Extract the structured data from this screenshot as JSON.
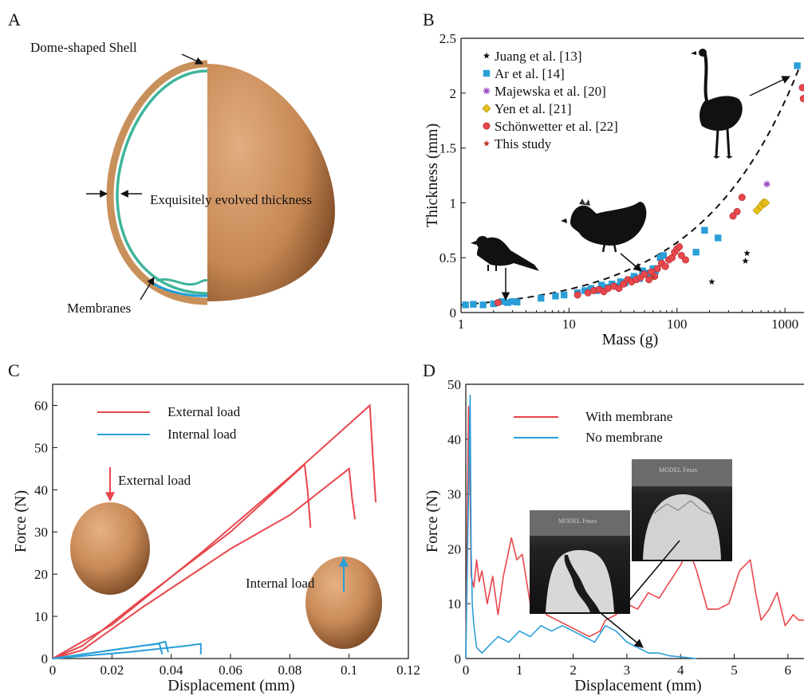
{
  "panel_letters": [
    "A",
    "B",
    "C",
    "D"
  ],
  "panel_a": {
    "labels": {
      "shell": "Dome-shaped Shell",
      "thickness": "Exquisitely evolved thickness",
      "membranes": "Membranes"
    },
    "colors": {
      "shell": "#c8905a",
      "membrane": "#3fb59a",
      "inner_membrane": "#1f9fd9",
      "egg": "#c98a58"
    }
  },
  "chart_data": [
    {
      "panel": "B",
      "type": "scatter",
      "x_scale": "log",
      "xlabel": "Mass (g)",
      "ylabel": "Thickness (mm)",
      "xlim": [
        1,
        1500
      ],
      "ylim": [
        0,
        2.5
      ],
      "xticks": [
        1,
        10,
        100,
        1000
      ],
      "yticks": [
        0,
        0.5,
        1.0,
        1.5,
        2.0,
        2.5
      ],
      "legend_position": "top-left",
      "series": [
        {
          "name": "Juang et al. [13]",
          "marker": "star",
          "color": "#111111",
          "points": [
            [
              210,
              0.28
            ],
            [
              430,
              0.47
            ],
            [
              445,
              0.54
            ]
          ]
        },
        {
          "name": "Ar et al. [14]",
          "marker": "square",
          "color": "#2a9fd8",
          "points": [
            [
              1.1,
              0.07
            ],
            [
              1.3,
              0.075
            ],
            [
              1.6,
              0.07
            ],
            [
              2.0,
              0.08
            ],
            [
              2.4,
              0.1
            ],
            [
              2.7,
              0.09
            ],
            [
              3.0,
              0.1
            ],
            [
              3.3,
              0.095
            ],
            [
              5.5,
              0.13
            ],
            [
              7.5,
              0.15
            ],
            [
              9,
              0.16
            ],
            [
              12,
              0.18
            ],
            [
              14,
              0.2
            ],
            [
              16,
              0.22
            ],
            [
              18,
              0.2
            ],
            [
              20,
              0.25
            ],
            [
              22,
              0.23
            ],
            [
              25,
              0.26
            ],
            [
              28,
              0.24
            ],
            [
              30,
              0.28
            ],
            [
              33,
              0.27
            ],
            [
              36,
              0.3
            ],
            [
              40,
              0.33
            ],
            [
              45,
              0.31
            ],
            [
              48,
              0.38
            ],
            [
              52,
              0.36
            ],
            [
              55,
              0.35
            ],
            [
              60,
              0.4
            ],
            [
              63,
              0.38
            ],
            [
              70,
              0.5
            ],
            [
              75,
              0.52
            ],
            [
              150,
              0.55
            ],
            [
              180,
              0.75
            ],
            [
              240,
              0.68
            ],
            [
              1300,
              2.25
            ]
          ]
        },
        {
          "name": "Majewska et al. [20]",
          "marker": "asterisk",
          "color": "#9b4fc4",
          "points": [
            [
              680,
              1.17
            ]
          ]
        },
        {
          "name": "Yen et al. [21]",
          "marker": "diamond",
          "color": "#e6c21a",
          "points": [
            [
              550,
              0.93
            ],
            [
              600,
              0.97
            ],
            [
              630,
              1.0
            ],
            [
              660,
              1.0
            ]
          ]
        },
        {
          "name": "Schönwetter et al. [22]",
          "marker": "circle",
          "color": "#e8474c",
          "points": [
            [
              2.2,
              0.09
            ],
            [
              12,
              0.16
            ],
            [
              15,
              0.18
            ],
            [
              17,
              0.2
            ],
            [
              19,
              0.21
            ],
            [
              21,
              0.19
            ],
            [
              23,
              0.22
            ],
            [
              26,
              0.24
            ],
            [
              29,
              0.22
            ],
            [
              32,
              0.26
            ],
            [
              35,
              0.3
            ],
            [
              38,
              0.28
            ],
            [
              42,
              0.3
            ],
            [
              46,
              0.32
            ],
            [
              50,
              0.35
            ],
            [
              55,
              0.3
            ],
            [
              58,
              0.37
            ],
            [
              62,
              0.33
            ],
            [
              66,
              0.4
            ],
            [
              72,
              0.45
            ],
            [
              78,
              0.42
            ],
            [
              84,
              0.48
            ],
            [
              90,
              0.5
            ],
            [
              95,
              0.55
            ],
            [
              100,
              0.58
            ],
            [
              105,
              0.6
            ],
            [
              110,
              0.52
            ],
            [
              120,
              0.48
            ],
            [
              330,
              0.88
            ],
            [
              360,
              0.92
            ],
            [
              400,
              1.05
            ],
            [
              1450,
              2.05
            ],
            [
              1480,
              1.95
            ]
          ]
        },
        {
          "name": "This study",
          "marker": "star",
          "color": "#c0392b",
          "points": [
            [
              60,
              0.32
            ]
          ]
        }
      ],
      "fit_curve": {
        "style": "dashed",
        "color": "#111111"
      }
    },
    {
      "panel": "C",
      "type": "line",
      "xlabel": "Displacement (mm)",
      "ylabel": "Force  (N)",
      "xlim": [
        0,
        0.12
      ],
      "ylim": [
        0,
        65
      ],
      "xticks": [
        0,
        0.02,
        0.04,
        0.06,
        0.08,
        0.1,
        0.12
      ],
      "yticks": [
        0,
        10,
        20,
        30,
        40,
        50,
        60
      ],
      "legend_position": "top-left",
      "annotations": {
        "external_arrow": "External load",
        "internal_arrow": "Internal load"
      },
      "series": [
        {
          "name": "External load",
          "color": "#e8474c",
          "curves": [
            {
              "x": [
                0,
                0.01,
                0.03,
                0.06,
                0.085,
                0.086,
                0.087
              ],
              "y": [
                0,
                3,
                14,
                30,
                46,
                40,
                31
              ]
            },
            {
              "x": [
                0,
                0.01,
                0.03,
                0.06,
                0.08,
                0.1,
                0.101,
                0.102
              ],
              "y": [
                0,
                2,
                12,
                26,
                34,
                45,
                38,
                33
              ]
            },
            {
              "x": [
                0,
                0.02,
                0.05,
                0.08,
                0.107,
                0.108,
                0.109
              ],
              "y": [
                0,
                8,
                25,
                43,
                60,
                48,
                37
              ]
            }
          ]
        },
        {
          "name": "Internal load",
          "color": "#2a9fd8",
          "curves": [
            {
              "x": [
                0,
                0.015,
                0.03,
                0.036,
                0.037
              ],
              "y": [
                0,
                1.5,
                3,
                3.5,
                1
              ]
            },
            {
              "x": [
                0,
                0.02,
                0.035,
                0.038,
                0.039
              ],
              "y": [
                0,
                2,
                3.5,
                4,
                1.5
              ]
            },
            {
              "x": [
                0,
                0.025,
                0.045,
                0.05,
                0.05
              ],
              "y": [
                0,
                1.5,
                3,
                3.5,
                1
              ]
            }
          ]
        }
      ]
    },
    {
      "panel": "D",
      "type": "line",
      "xlabel": "Displacement (mm)",
      "ylabel": "Force (N)",
      "xlim": [
        0,
        6.3
      ],
      "ylim": [
        0,
        50
      ],
      "xticks": [
        0,
        1,
        2,
        3,
        4,
        5,
        6
      ],
      "yticks": [
        0,
        10,
        20,
        30,
        40,
        50
      ],
      "legend_position": "top-left",
      "series": [
        {
          "name": "With membrane",
          "color": "#e8474c",
          "x": [
            0,
            0.05,
            0.08,
            0.1,
            0.15,
            0.2,
            0.25,
            0.3,
            0.4,
            0.5,
            0.6,
            0.7,
            0.85,
            0.95,
            1.05,
            1.2,
            1.35,
            1.5,
            1.7,
            1.9,
            2.1,
            2.3,
            2.5,
            2.6,
            2.8,
            3.0,
            3.2,
            3.4,
            3.6,
            3.8,
            4.0,
            4.15,
            4.3,
            4.5,
            4.7,
            4.9,
            5.1,
            5.3,
            5.4,
            5.5,
            5.65,
            5.8,
            5.95,
            6.1,
            6.2,
            6.3
          ],
          "y": [
            0,
            46,
            30,
            15,
            13,
            18,
            14,
            16,
            10,
            15,
            8,
            15,
            22,
            18,
            19,
            10,
            18,
            8,
            7,
            6,
            5,
            4,
            5,
            7,
            8,
            10,
            9,
            12,
            11,
            14,
            17,
            20,
            16,
            9,
            9,
            10,
            16,
            18,
            12,
            7,
            9,
            12,
            6,
            8,
            7,
            7
          ]
        },
        {
          "name": "No membrane",
          "color": "#2a9fd8",
          "x": [
            0,
            0.08,
            0.1,
            0.12,
            0.15,
            0.2,
            0.3,
            0.4,
            0.6,
            0.8,
            1.0,
            1.2,
            1.4,
            1.6,
            1.8,
            2.0,
            2.2,
            2.4,
            2.6,
            2.8,
            3.0,
            3.2,
            3.4,
            3.6,
            3.8,
            4.0,
            4.2,
            4.3
          ],
          "y": [
            0,
            48,
            20,
            10,
            6,
            2,
            1,
            2,
            4,
            3,
            5,
            4,
            6,
            5,
            6,
            5,
            4,
            3,
            6,
            5,
            3,
            2,
            1,
            1,
            0.5,
            0.3,
            0.1,
            0
          ]
        }
      ],
      "inset_text": {
        "photo1": "MODEL\nFmax",
        "photo2": "MODEL\nFmax"
      }
    }
  ]
}
